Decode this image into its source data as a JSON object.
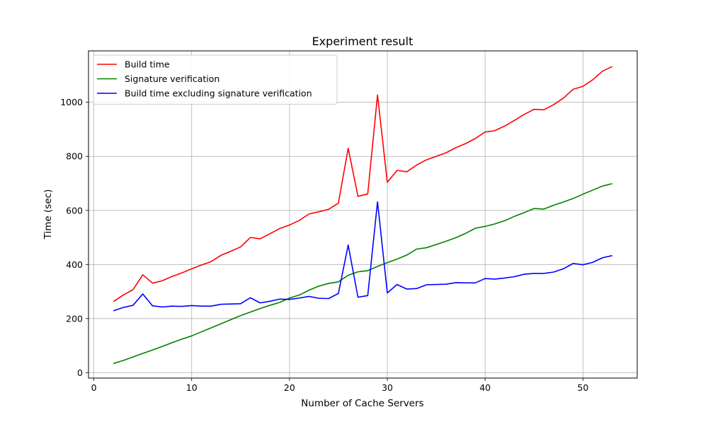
{
  "chart_data": {
    "type": "line",
    "title": "Experiment result",
    "xlabel": "Number of Cache Servers",
    "ylabel": "Time (sec)",
    "xlim": [
      -0.55,
      55.55
    ],
    "ylim": [
      -20,
      1190
    ],
    "xticks": [
      0,
      10,
      20,
      30,
      40,
      50
    ],
    "yticks": [
      0,
      200,
      400,
      600,
      800,
      1000
    ],
    "grid": true,
    "legend_position": "top-left",
    "x": [
      2,
      3,
      4,
      5,
      6,
      7,
      8,
      9,
      10,
      11,
      12,
      13,
      14,
      15,
      16,
      17,
      18,
      19,
      20,
      21,
      22,
      23,
      24,
      25,
      26,
      27,
      28,
      29,
      30,
      31,
      32,
      33,
      34,
      35,
      36,
      37,
      38,
      39,
      40,
      41,
      42,
      43,
      44,
      45,
      46,
      47,
      48,
      49,
      50,
      51,
      52,
      53
    ],
    "series": [
      {
        "name": "Build time",
        "color": "#ff0000",
        "values": [
          263,
          287,
          307,
          362,
          331,
          340,
          356,
          369,
          384,
          398,
          411,
          434,
          449,
          465,
          500,
          495,
          514,
          533,
          546,
          563,
          587,
          595,
          604,
          627,
          830,
          652,
          661,
          1027,
          704,
          748,
          743,
          768,
          787,
          800,
          813,
          832,
          847,
          866,
          890,
          895,
          912,
          933,
          955,
          974,
          972,
          991,
          1015,
          1048,
          1059,
          1083,
          1115,
          1132
        ]
      },
      {
        "name": "Signature verification",
        "color": "#008000",
        "values": [
          34,
          45,
          58,
          71,
          84,
          97,
          111,
          124,
          136,
          151,
          166,
          181,
          196,
          211,
          224,
          237,
          249,
          260,
          276,
          287,
          305,
          320,
          330,
          336,
          360,
          373,
          377,
          393,
          407,
          420,
          435,
          457,
          462,
          474,
          486,
          499,
          515,
          534,
          541,
          550,
          562,
          578,
          592,
          607,
          605,
          619,
          631,
          644,
          660,
          675,
          690,
          699
        ]
      },
      {
        "name": "Build time excluding signature verification",
        "color": "#0000ff",
        "values": [
          229,
          241,
          249,
          291,
          247,
          243,
          246,
          245,
          248,
          246,
          246,
          253,
          254,
          255,
          277,
          258,
          264,
          272,
          271,
          276,
          282,
          275,
          274,
          293,
          472,
          279,
          285,
          632,
          295,
          326,
          309,
          311,
          325,
          326,
          327,
          333,
          332,
          332,
          348,
          346,
          350,
          355,
          364,
          367,
          367,
          372,
          384,
          404,
          399,
          408,
          425,
          433
        ]
      }
    ]
  }
}
